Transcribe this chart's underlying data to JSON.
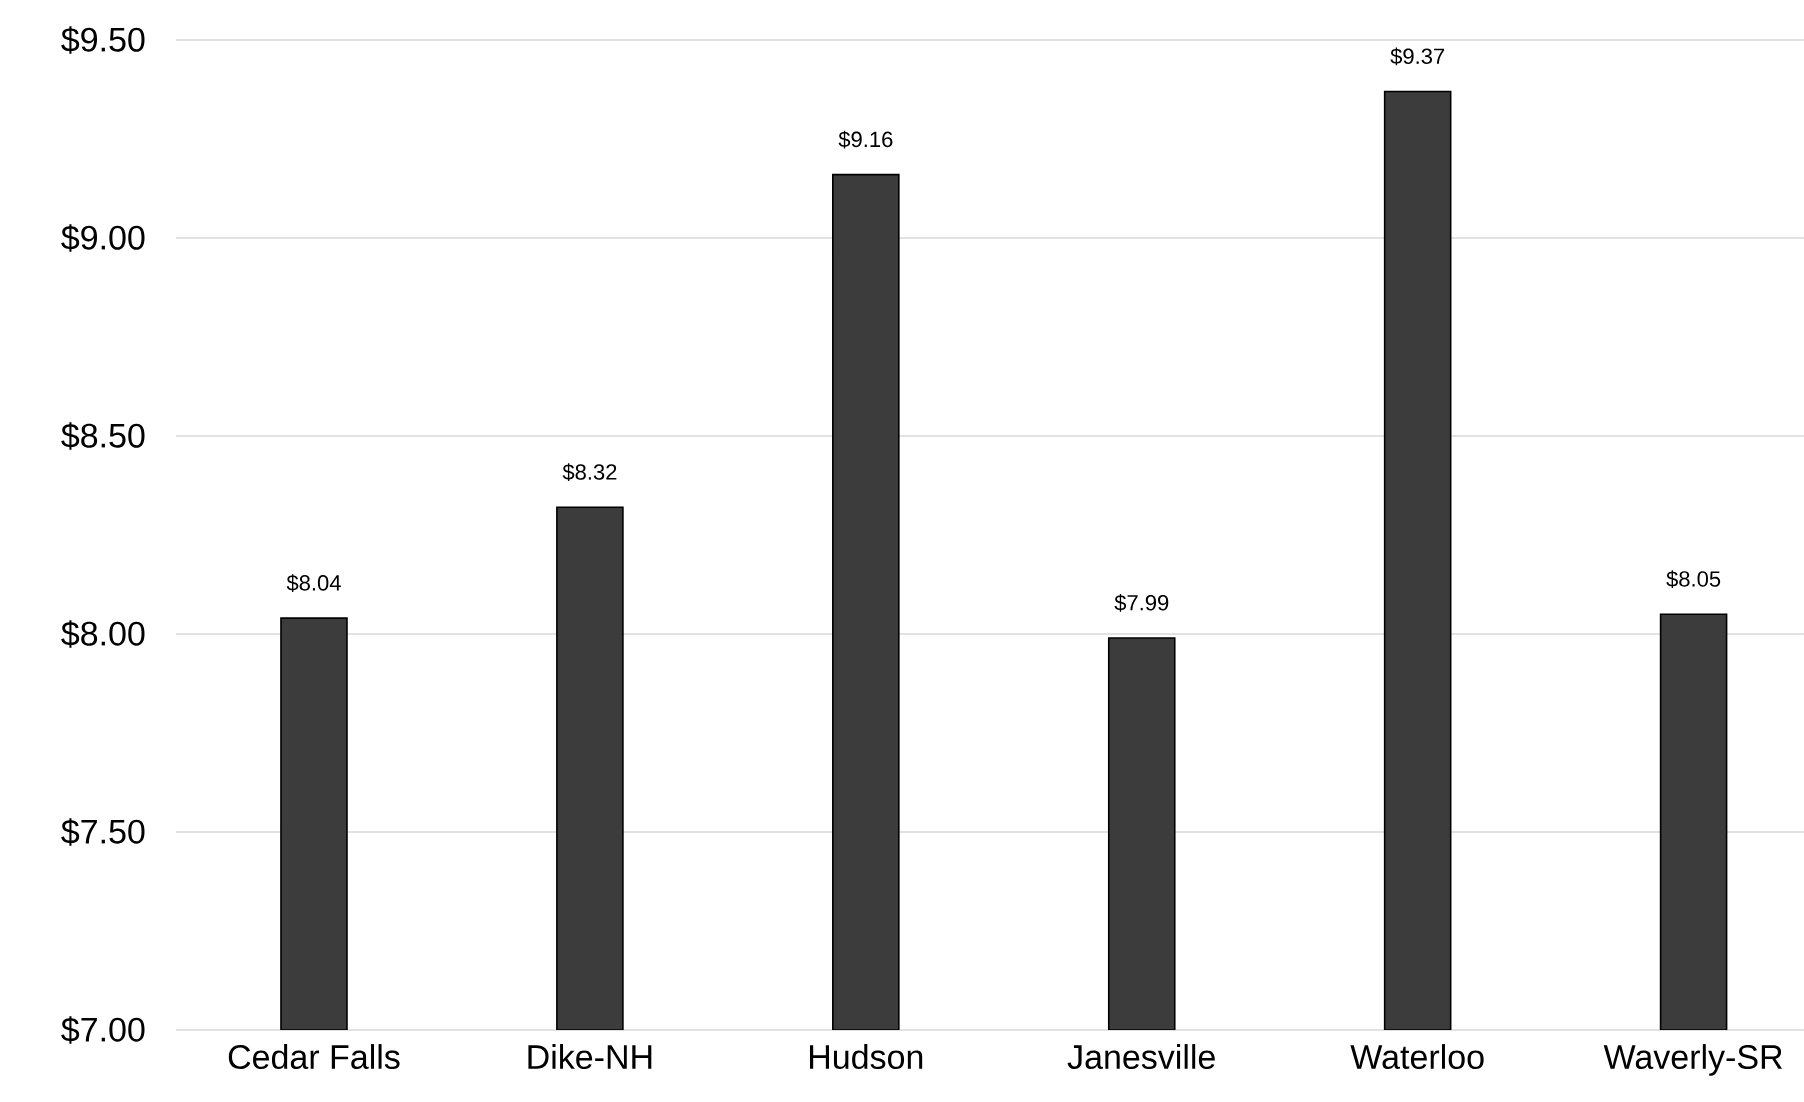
{
  "chart_data": {
    "type": "bar",
    "categories": [
      "Cedar Falls",
      "Dike-NH",
      "Hudson",
      "Janesville",
      "Waterloo",
      "Waverly-SR"
    ],
    "values": [
      8.04,
      8.32,
      9.16,
      7.99,
      9.37,
      8.05
    ],
    "value_labels": [
      "$8.04",
      "$8.32",
      "$9.16",
      "$7.99",
      "$9.37",
      "$8.05"
    ],
    "color": "#3c3c3c",
    "ylim": [
      7.0,
      9.5
    ],
    "yticks": [
      {
        "value": 7.0,
        "label": "$7.00"
      },
      {
        "value": 7.5,
        "label": "$7.50"
      },
      {
        "value": 8.0,
        "label": "$8.00"
      },
      {
        "value": 8.5,
        "label": "$8.50"
      },
      {
        "value": 9.0,
        "label": "$9.00"
      },
      {
        "value": 9.5,
        "label": "$9.50"
      }
    ],
    "grid": "y"
  }
}
